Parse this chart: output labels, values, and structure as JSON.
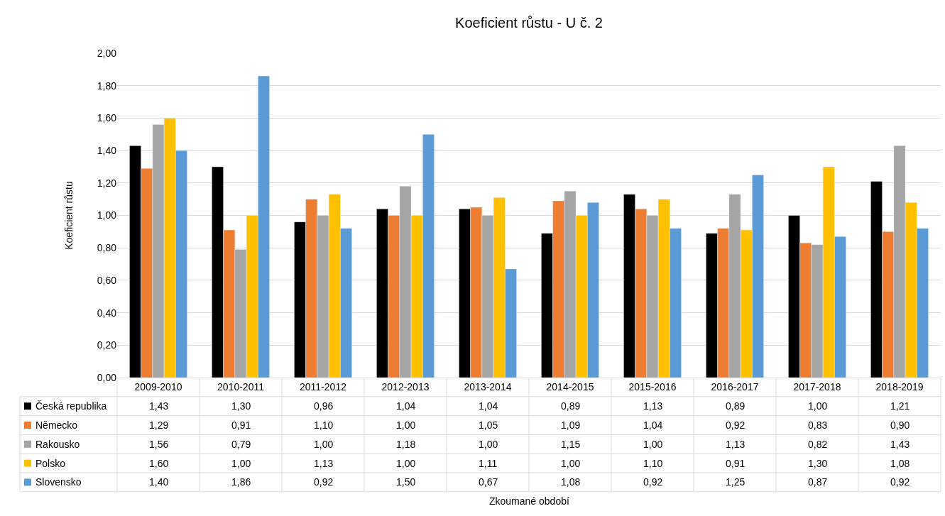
{
  "chart_data": {
    "type": "bar",
    "title": "Koeficient růstu - U č. 2",
    "annotations": [
      "Zkoumané období"
    ],
    "ylabel": "Koeficient růstu",
    "categories": [
      "2009-2010",
      "2010-2011",
      "2011-2012",
      "2012-2013",
      "2013-2014",
      "2014-2015",
      "2015-2016",
      "2016-2017",
      "2017-2018",
      "2018-2019"
    ],
    "series": [
      {
        "name": "Česká republika",
        "color": "#000000",
        "values": [
          1.43,
          1.3,
          0.96,
          1.04,
          1.04,
          0.89,
          1.13,
          0.89,
          1.0,
          1.21
        ],
        "value_labels": [
          "1,43",
          "1,30",
          "0,96",
          "1,04",
          "1,04",
          "0,89",
          "1,13",
          "0,89",
          "1,00",
          "1,21"
        ]
      },
      {
        "name": "Německo",
        "color": "#ed7d31",
        "values": [
          1.29,
          0.91,
          1.1,
          1.0,
          1.05,
          1.09,
          1.04,
          0.92,
          0.83,
          0.9
        ],
        "value_labels": [
          "1,29",
          "0,91",
          "1,10",
          "1,00",
          "1,05",
          "1,09",
          "1,04",
          "0,92",
          "0,83",
          "0,90"
        ]
      },
      {
        "name": "Rakousko",
        "color": "#a5a5a5",
        "values": [
          1.56,
          0.79,
          1.0,
          1.18,
          1.0,
          1.15,
          1.0,
          1.13,
          0.82,
          1.43
        ],
        "value_labels": [
          "1,56",
          "0,79",
          "1,00",
          "1,18",
          "1,00",
          "1,15",
          "1,00",
          "1,13",
          "0,82",
          "1,43"
        ]
      },
      {
        "name": "Polsko",
        "color": "#ffc000",
        "values": [
          1.6,
          1.0,
          1.13,
          1.0,
          1.11,
          1.0,
          1.1,
          0.91,
          1.3,
          1.08
        ],
        "value_labels": [
          "1,60",
          "1,00",
          "1,13",
          "1,00",
          "1,11",
          "1,00",
          "1,10",
          "0,91",
          "1,30",
          "1,08"
        ]
      },
      {
        "name": "Slovensko",
        "color": "#5b9bd5",
        "values": [
          1.4,
          1.86,
          0.92,
          1.5,
          0.67,
          1.08,
          0.92,
          1.25,
          0.87,
          0.92
        ],
        "value_labels": [
          "1,40",
          "1,86",
          "0,92",
          "1,50",
          "0,67",
          "1,08",
          "0,92",
          "1,25",
          "0,87",
          "0,92"
        ]
      }
    ],
    "ylim": [
      0,
      2
    ],
    "yticks": [
      {
        "value": 0,
        "label": "0,00"
      },
      {
        "value": 0.2,
        "label": "0,20"
      },
      {
        "value": 0.4,
        "label": "0,40"
      },
      {
        "value": 0.6,
        "label": "0,60"
      },
      {
        "value": 0.8,
        "label": "0,80"
      },
      {
        "value": 1.0,
        "label": "1,00"
      },
      {
        "value": 1.2,
        "label": "1,20"
      },
      {
        "value": 1.4,
        "label": "1,40"
      },
      {
        "value": 1.6,
        "label": "1,60"
      },
      {
        "value": 1.8,
        "label": "1,80"
      },
      {
        "value": 2.0,
        "label": "2,00"
      }
    ],
    "grid": "y",
    "legend": "bottom left"
  }
}
